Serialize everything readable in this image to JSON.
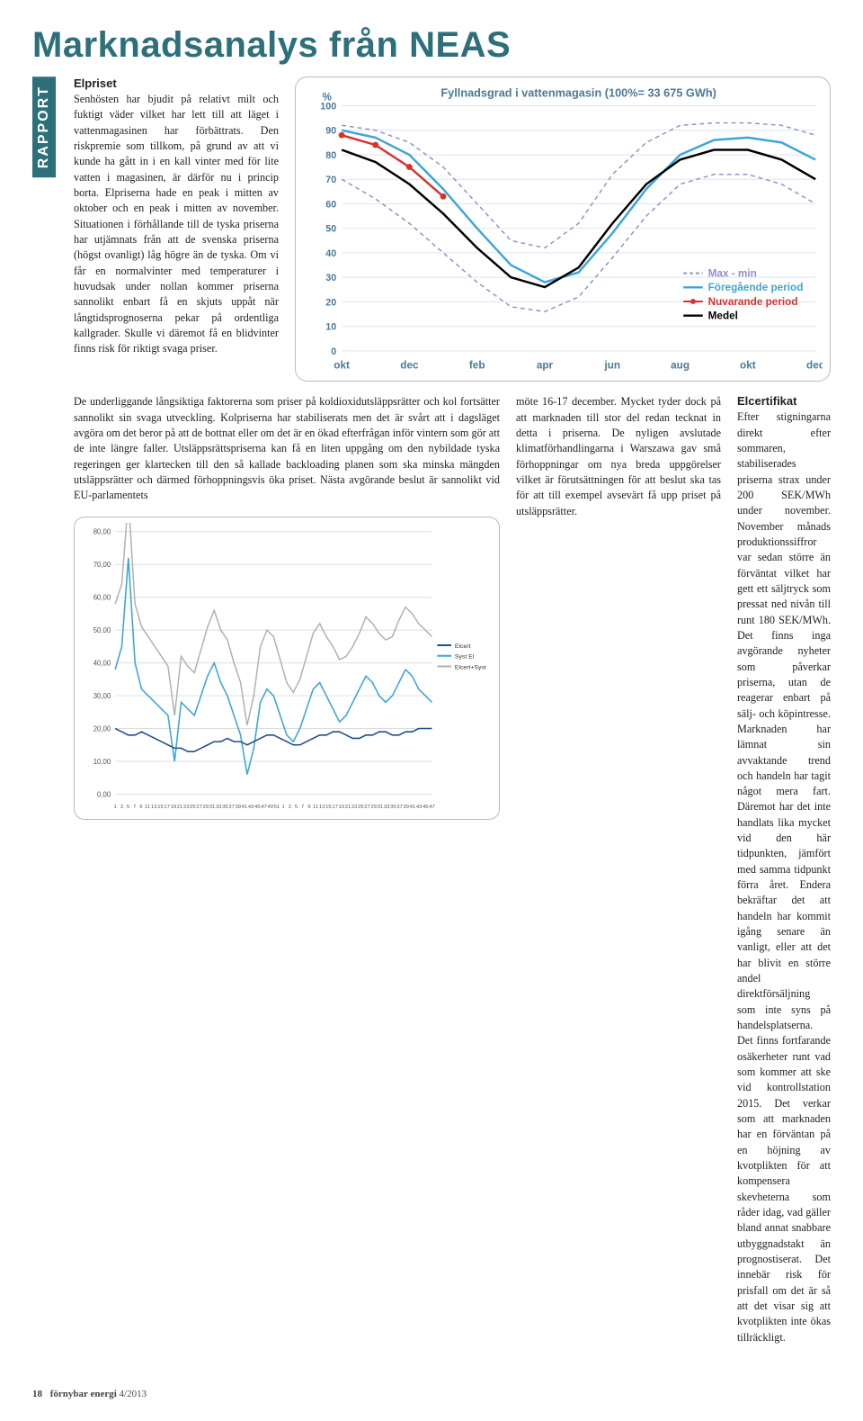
{
  "title": "Marknadsanalys från NEAS",
  "tab": "RAPPORT",
  "section1_heading": "Elpriset",
  "para1": "Senhösten har bjudit på relativt milt och fuktigt väder vilket har lett till att läget i vattenmagasinen har förbättrats. Den riskpremie som tillkom, på grund av att vi kunde ha gått in i en kall vinter med för lite vatten i magasinen, är därför nu i princip borta. Elpriserna hade en peak i mitten av oktober och en peak i mitten av november. Situationen i förhållande till de tyska priserna har utjämnats från att de svenska priserna (högst ovanligt) låg högre än de tyska. Om vi får en normalvinter med temperaturer i huvudsak under nollan kommer priserna sannolikt enbart få en skjuts uppåt när långtidsprognoserna pekar på ordentliga kallgrader. Skulle vi däremot få en blidvinter finns risk för riktigt svaga priser.",
  "para2": "De underliggande långsiktiga faktorerna som priser på koldioxidutsläppsrätter och kol fortsätter sannolikt sin svaga utveckling. Kolpriserna har stabiliserats men det är svårt att i dagsläget avgöra om det beror på att de bottnat eller om det är en ökad efterfrågan inför vintern som gör att de inte längre faller. Utsläppsrättspriserna kan få en liten uppgång om den nybildade tyska regeringen ger klartecken till den så kallade backloading planen som ska minska mängden utsläppsrätter och därmed förhoppningsvis öka priset. Nästa avgörande beslut är sannolikt vid EU-parlamentets",
  "para3": "möte 16-17 december. Mycket tyder dock på att marknaden till stor del redan tecknat in detta i priserna. De nyligen avslutade klimatförhandlingarna i Warszawa gav små förhoppningar om nya breda uppgörelser vilket är förutsättningen för att beslut ska tas för att till exempel avsevärt få upp priset på utsläppsrätter.",
  "section2_heading": "Elcertifikat",
  "para4": "Efter stigningarna direkt efter sommaren, stabiliserades priserna strax under 200 SEK/MWh under november. November månads produktionssiffror var sedan större än förväntat vilket har gett ett säljtryck som pressat ned nivån till runt 180 SEK/MWh. Det finns inga avgörande nyheter som påverkar priserna, utan de reagerar enbart på sälj- och köpintresse. Marknaden har lämnat sin avvaktande trend och handeln har tagit något mera fart. Däremot har det inte handlats lika mycket vid den här tidpunkten, jämfört med samma tidpunkt förra året. Endera bekräftar det att handeln har kommit igång senare än vanligt, eller att det har blivit en större andel direktförsäljning som inte syns på handelsplatserna. Det finns fortfarande osäkerheter runt vad som kommer att ske vid kontrollstation 2015. Det verkar som att marknaden har en förväntan på en höjning av kvotplikten för att kompensera skevheterna som råder idag, vad gäller bland annat snabbare utbyggnadstakt än prognostiserat. Det innebär risk för prisfall om det är så att det visar sig att kvotplikten inte ökas tillräckligt.",
  "chart1": {
    "type": "line",
    "title": "Fyllnadsgrad i vattenmagasin (100%= 33 675 GWh)",
    "title_color": "#4b7a96",
    "title_fontsize": 13,
    "ylabel": "%",
    "ylim": [
      0,
      100
    ],
    "ytick_step": 10,
    "yticks": [
      0,
      10,
      20,
      30,
      40,
      50,
      60,
      70,
      80,
      90,
      100
    ],
    "xticks": [
      "okt",
      "dec",
      "feb",
      "apr",
      "jun",
      "aug",
      "okt",
      "dec"
    ],
    "background": "#ffffff",
    "grid_color": "#d9e6ec",
    "legend": [
      {
        "label": "Max - min",
        "color": "#9090cc",
        "dash": "4,3"
      },
      {
        "label": "Föregående period",
        "color": "#3ea5d8"
      },
      {
        "label": "Nuvarande period",
        "color": "#d7322f",
        "marker": "circle"
      },
      {
        "label": "Medel",
        "color": "#000000"
      }
    ],
    "series": {
      "max": [
        92,
        90,
        85,
        75,
        60,
        45,
        42,
        52,
        72,
        85,
        92,
        93,
        93,
        92,
        88
      ],
      "min": [
        70,
        62,
        52,
        40,
        28,
        18,
        16,
        22,
        38,
        55,
        68,
        72,
        72,
        68,
        60
      ],
      "prev": [
        90,
        87,
        80,
        66,
        50,
        35,
        28,
        32,
        48,
        66,
        80,
        86,
        87,
        85,
        78
      ],
      "curr_x_end": 3,
      "curr": [
        88,
        84,
        75,
        63
      ],
      "medel": [
        82,
        77,
        68,
        56,
        42,
        30,
        26,
        34,
        52,
        68,
        78,
        82,
        82,
        78,
        70
      ]
    }
  },
  "chart2": {
    "type": "line",
    "ylim": [
      0,
      80
    ],
    "ytick_step": 10,
    "yticks": [
      "0,00",
      "10,00",
      "20,00",
      "30,00",
      "40,00",
      "50,00",
      "60,00",
      "70,00",
      "80,00"
    ],
    "xticks": [
      "1",
      "3",
      "5",
      "7",
      "9",
      "11",
      "13",
      "15",
      "17",
      "19",
      "21",
      "23",
      "25",
      "27",
      "29",
      "31",
      "33",
      "35",
      "37",
      "39",
      "41",
      "43",
      "45",
      "47",
      "49",
      "51",
      "1",
      "3",
      "5",
      "7",
      "9",
      "11",
      "13",
      "15",
      "17",
      "19",
      "21",
      "23",
      "25",
      "27",
      "29",
      "31",
      "33",
      "35",
      "37",
      "39",
      "41",
      "43",
      "45",
      "47"
    ],
    "grid_color": "#dddddd",
    "legend": [
      {
        "label": "Elcert",
        "color": "#1f4e8c"
      },
      {
        "label": "Syst El",
        "color": "#3ea5d8"
      },
      {
        "label": "Elcert+Syst",
        "color": "#b0b0b0"
      }
    ],
    "series": {
      "elcert": [
        20,
        19,
        18,
        18,
        19,
        18,
        17,
        16,
        15,
        14,
        14,
        13,
        13,
        14,
        15,
        16,
        16,
        17,
        16,
        16,
        15,
        16,
        17,
        18,
        18,
        17,
        16,
        15,
        15,
        16,
        17,
        18,
        18,
        19,
        19,
        18,
        17,
        17,
        18,
        18,
        19,
        19,
        18,
        18,
        19,
        19,
        20,
        20,
        20
      ],
      "syst": [
        38,
        45,
        72,
        40,
        32,
        30,
        28,
        26,
        24,
        10,
        28,
        26,
        24,
        30,
        36,
        40,
        34,
        30,
        24,
        18,
        6,
        14,
        28,
        32,
        30,
        24,
        18,
        16,
        20,
        26,
        32,
        34,
        30,
        26,
        22,
        24,
        28,
        32,
        36,
        34,
        30,
        28,
        30,
        34,
        38,
        36,
        32,
        30,
        28
      ],
      "sum": [
        58,
        64,
        90,
        58,
        51,
        48,
        45,
        42,
        39,
        24,
        42,
        39,
        37,
        44,
        51,
        56,
        50,
        47,
        40,
        34,
        21,
        30,
        45,
        50,
        48,
        41,
        34,
        31,
        35,
        42,
        49,
        52,
        48,
        45,
        41,
        42,
        45,
        49,
        54,
        52,
        49,
        47,
        48,
        53,
        57,
        55,
        52,
        50,
        48
      ]
    }
  },
  "footer": {
    "page": "18",
    "mag": "förnybar energi",
    "issue": "4/2013"
  }
}
